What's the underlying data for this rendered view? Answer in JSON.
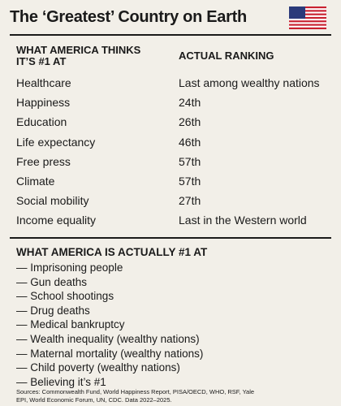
{
  "header": {
    "title": "The ‘Greatest’ Country on Earth"
  },
  "table": {
    "headers": [
      "WHAT AMERICA THINKS IT’S #1 AT",
      "ACTUAL RANKING"
    ],
    "rows": [
      [
        "Healthcare",
        "Last among wealthy nations"
      ],
      [
        "Happiness",
        "24th"
      ],
      [
        "Education",
        "26th"
      ],
      [
        "Life expectancy",
        "46th"
      ],
      [
        "Free press",
        "57th"
      ],
      [
        "Climate",
        "57th"
      ],
      [
        "Social mobility",
        "27th"
      ],
      [
        "Income equality",
        "Last in the Western world"
      ]
    ]
  },
  "list": {
    "title": "WHAT AMERICA IS ACTUALLY #1 AT",
    "items": [
      "— Imprisoning people",
      "— Gun deaths",
      "— School shootings",
      "— Drug deaths",
      "— Medical bankruptcy",
      "— Wealth inequality (wealthy nations)",
      "— Maternal mortality (wealthy nations)",
      "— Child poverty (wealthy nations)",
      "— Believing it’s #1"
    ]
  },
  "footer": {
    "sources": "Sources: Commonwealth Fund, World Happiness Report, PISA/OECD, WHO, RSF, Yale EPI, World Economic Forum, UN, CDC. Data 2022–2025."
  }
}
